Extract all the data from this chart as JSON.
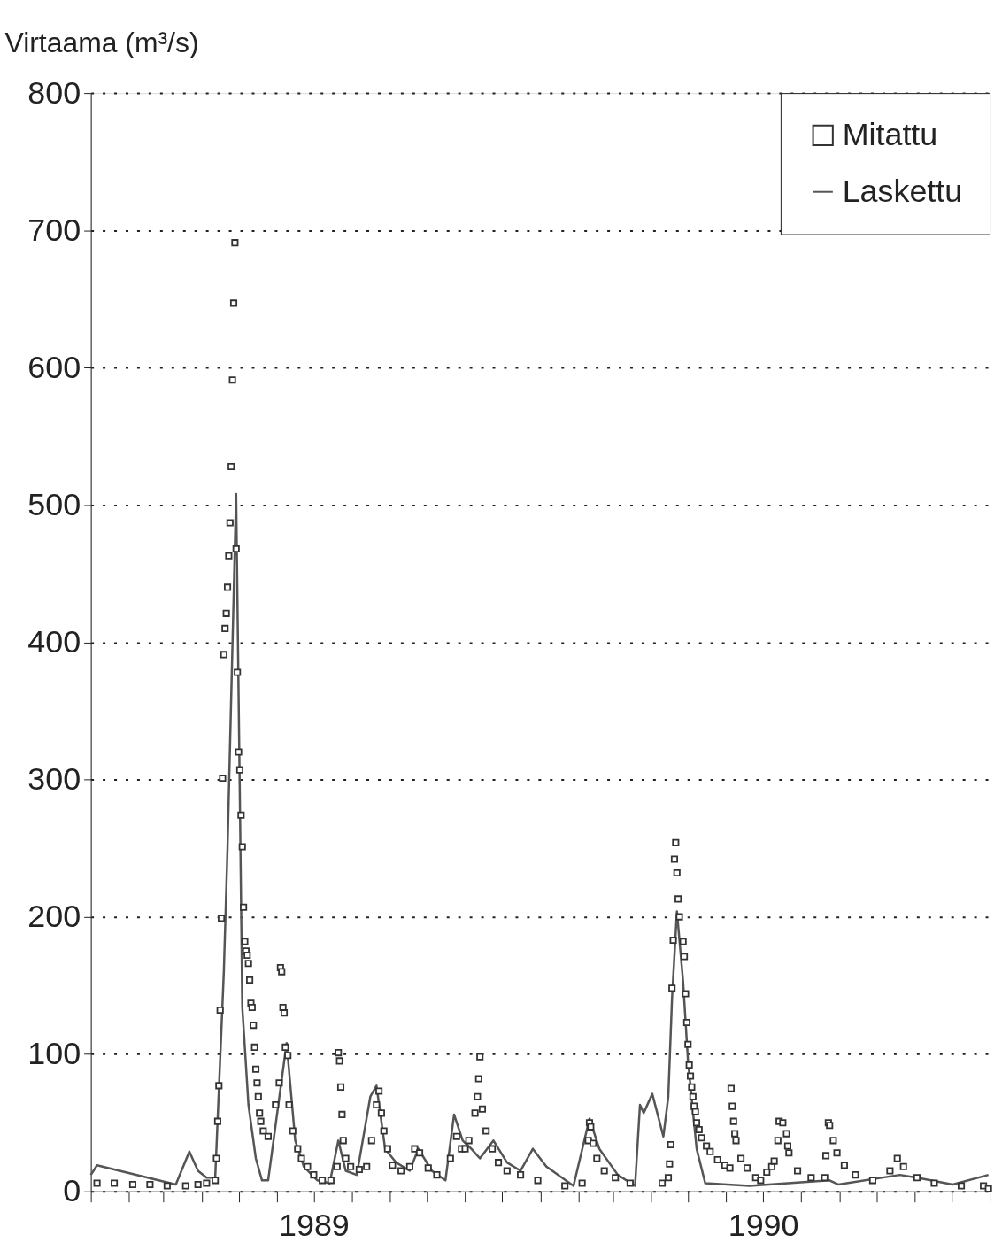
{
  "chart_data": {
    "type": "line",
    "ylabel": "Virtaama (m³/s)",
    "xlim": [
      "1989-01-01",
      "1991-01-01"
    ],
    "xticks": [
      {
        "value": "1989-01-01",
        "label": null
      },
      {
        "value": "1989-02-01",
        "label": null
      },
      {
        "value": "1989-03-01",
        "label": null
      },
      {
        "value": "1989-04-01",
        "label": null
      },
      {
        "value": "1989-05-01",
        "label": null
      },
      {
        "value": "1989-06-01",
        "label": null
      },
      {
        "value": "1989-07-01",
        "label": "1989"
      },
      {
        "value": "1989-08-01",
        "label": null
      },
      {
        "value": "1989-09-01",
        "label": null
      },
      {
        "value": "1989-10-01",
        "label": null
      },
      {
        "value": "1989-11-01",
        "label": null
      },
      {
        "value": "1989-12-01",
        "label": null
      },
      {
        "value": "1990-01-01",
        "label": null
      },
      {
        "value": "1990-02-01",
        "label": null
      },
      {
        "value": "1990-03-01",
        "label": null
      },
      {
        "value": "1990-04-01",
        "label": null
      },
      {
        "value": "1990-05-01",
        "label": null
      },
      {
        "value": "1990-06-01",
        "label": null
      },
      {
        "value": "1990-07-01",
        "label": "1990"
      },
      {
        "value": "1990-08-01",
        "label": null
      },
      {
        "value": "1990-09-01",
        "label": null
      },
      {
        "value": "1990-10-01",
        "label": null
      },
      {
        "value": "1990-11-01",
        "label": null
      },
      {
        "value": "1990-12-01",
        "label": null
      },
      {
        "value": "1991-01-01",
        "label": null
      }
    ],
    "ylim": [
      0,
      800
    ],
    "yticks": [
      0,
      100,
      200,
      300,
      400,
      500,
      600,
      700,
      800
    ],
    "grid": "y",
    "legend": "top right",
    "series": [
      {
        "name": "Mitattu",
        "type": "scatter",
        "marker": "square",
        "color": "#333333",
        "x": [
          "1989-01-06",
          "1989-01-20",
          "1989-02-04",
          "1989-02-18",
          "1989-03-04",
          "1989-03-19",
          "1989-03-29",
          "1989-04-05",
          "1989-04-12",
          "1989-04-13",
          "1989-04-14",
          "1989-04-15",
          "1989-04-16",
          "1989-04-17",
          "1989-04-18",
          "1989-04-19",
          "1989-04-20",
          "1989-04-21",
          "1989-04-22",
          "1989-04-23",
          "1989-04-24",
          "1989-04-25",
          "1989-04-26",
          "1989-04-27",
          "1989-04-28",
          "1989-04-29",
          "1989-04-30",
          "1989-05-01",
          "1989-05-02",
          "1989-05-03",
          "1989-05-04",
          "1989-05-05",
          "1989-05-06",
          "1989-05-07",
          "1989-05-08",
          "1989-05-09",
          "1989-05-10",
          "1989-05-11",
          "1989-05-12",
          "1989-05-13",
          "1989-05-14",
          "1989-05-15",
          "1989-05-16",
          "1989-05-17",
          "1989-05-18",
          "1989-05-19",
          "1989-05-21",
          "1989-05-25",
          "1989-05-31",
          "1989-06-03",
          "1989-06-04",
          "1989-06-05",
          "1989-06-06",
          "1989-06-07",
          "1989-06-08",
          "1989-06-10",
          "1989-06-11",
          "1989-06-14",
          "1989-06-18",
          "1989-06-21",
          "1989-06-26",
          "1989-07-01",
          "1989-07-08",
          "1989-07-15",
          "1989-07-20",
          "1989-07-21",
          "1989-07-22",
          "1989-07-23",
          "1989-07-24",
          "1989-07-25",
          "1989-07-27",
          "1989-07-31",
          "1989-08-07",
          "1989-08-13",
          "1989-08-17",
          "1989-08-21",
          "1989-08-23",
          "1989-08-25",
          "1989-08-27",
          "1989-08-30",
          "1989-09-03",
          "1989-09-10",
          "1989-09-17",
          "1989-09-21",
          "1989-09-25",
          "1989-10-02",
          "1989-10-09",
          "1989-10-20",
          "1989-10-25",
          "1989-10-29",
          "1989-11-01",
          "1989-11-04",
          "1989-11-09",
          "1989-11-11",
          "1989-11-12",
          "1989-11-13",
          "1989-11-15",
          "1989-11-18",
          "1989-11-23",
          "1989-11-28",
          "1989-12-05",
          "1989-12-16",
          "1989-12-30",
          "1990-01-21",
          "1990-02-04",
          "1990-02-09",
          "1990-02-10",
          "1990-02-11",
          "1990-02-13",
          "1990-02-16",
          "1990-02-22",
          "1990-03-03",
          "1990-03-15",
          "1990-04-10",
          "1990-04-15",
          "1990-04-16",
          "1990-04-17",
          "1990-04-18",
          "1990-04-19",
          "1990-04-20",
          "1990-04-21",
          "1990-04-22",
          "1990-04-23",
          "1990-04-24",
          "1990-04-27",
          "1990-04-28",
          "1990-04-29",
          "1990-04-30",
          "1990-05-01",
          "1990-05-02",
          "1990-05-03",
          "1990-05-04",
          "1990-05-05",
          "1990-05-06",
          "1990-05-07",
          "1990-05-08",
          "1990-05-10",
          "1990-05-12",
          "1990-05-16",
          "1990-05-19",
          "1990-05-25",
          "1990-05-31",
          "1990-06-04",
          "1990-06-05",
          "1990-06-06",
          "1990-06-07",
          "1990-06-08",
          "1990-06-09",
          "1990-06-13",
          "1990-06-18",
          "1990-06-25",
          "1990-06-29",
          "1990-07-04",
          "1990-07-08",
          "1990-07-10",
          "1990-07-13",
          "1990-07-14",
          "1990-07-17",
          "1990-07-20",
          "1990-07-21",
          "1990-07-22",
          "1990-07-29",
          "1990-08-09",
          "1990-08-20",
          "1990-08-21",
          "1990-08-23",
          "1990-08-24",
          "1990-08-27",
          "1990-08-30",
          "1990-09-05",
          "1990-09-14",
          "1990-09-28",
          "1990-10-12",
          "1990-10-18",
          "1990-10-23",
          "1990-11-03",
          "1990-11-17",
          "1990-12-09",
          "1990-12-27",
          "1990-12-31"
        ],
        "values": [
          6,
          6,
          5,
          5,
          4,
          4,
          5,
          6,
          8,
          24,
          51,
          77,
          132,
          199,
          301,
          391,
          410,
          421,
          440,
          463,
          487,
          528,
          591,
          647,
          691,
          468,
          378,
          320,
          307,
          274,
          251,
          207,
          182,
          175,
          172,
          166,
          154,
          137,
          134,
          121,
          105,
          89,
          79,
          69,
          57,
          51,
          44,
          40,
          63,
          79,
          163,
          160,
          134,
          130,
          105,
          99,
          63,
          44,
          31,
          24,
          18,
          12,
          8,
          8,
          18,
          101,
          95,
          76,
          56,
          37,
          24,
          18,
          16,
          18,
          37,
          63,
          73,
          57,
          44,
          31,
          19,
          15,
          18,
          31,
          28,
          17,
          12,
          24,
          40,
          31,
          31,
          37,
          57,
          69,
          82,
          98,
          60,
          44,
          31,
          21,
          15,
          12,
          8,
          4,
          6,
          37,
          50,
          47,
          35,
          24,
          15,
          10,
          6,
          6,
          10,
          20,
          34,
          148,
          183,
          242,
          254,
          232,
          213,
          200,
          182,
          171,
          144,
          123,
          107,
          92,
          84,
          76,
          69,
          62,
          58,
          50,
          45,
          39,
          33,
          29,
          23,
          19,
          17,
          75,
          62,
          51,
          42,
          37,
          24,
          17,
          10,
          8,
          14,
          18,
          22,
          37,
          51,
          50,
          42,
          33,
          28,
          15,
          10,
          10,
          26,
          50,
          48,
          37,
          28,
          19,
          12,
          8,
          15,
          24,
          18,
          10,
          6,
          4,
          4,
          2
        ]
      },
      {
        "name": "Laskettu",
        "color": "#555555",
        "x": [
          "1989-01-01",
          "1989-01-06",
          "1989-03-11",
          "1989-03-22",
          "1989-03-29",
          "1989-04-05",
          "1989-04-12",
          "1989-04-19",
          "1989-04-22",
          "1989-04-29",
          "1989-05-02",
          "1989-05-04",
          "1989-05-09",
          "1989-05-15",
          "1989-05-20",
          "1989-05-25",
          "1989-06-09",
          "1989-06-16",
          "1989-06-23",
          "1989-07-04",
          "1989-07-14",
          "1989-07-21",
          "1989-07-27",
          "1989-08-05",
          "1989-08-16",
          "1989-08-21",
          "1989-08-28",
          "1989-09-06",
          "1989-09-17",
          "1989-09-24",
          "1989-10-05",
          "1989-10-16",
          "1989-10-23",
          "1989-10-30",
          "1989-11-06",
          "1989-11-13",
          "1989-11-24",
          "1989-12-05",
          "1989-12-16",
          "1989-12-26",
          "1990-01-06",
          "1990-01-28",
          "1990-02-10",
          "1990-02-18",
          "1990-03-05",
          "1990-03-19",
          "1990-03-23",
          "1990-03-26",
          "1990-04-02",
          "1990-04-11",
          "1990-04-15",
          "1990-04-18",
          "1990-04-22",
          "1990-04-27",
          "1990-05-01",
          "1990-05-08",
          "1990-05-15",
          "1990-06-20",
          "1990-08-24",
          "1990-08-31",
          "1990-10-20",
          "1990-11-03",
          "1990-12-02",
          "1990-12-31"
        ],
        "values": [
          12,
          19,
          5,
          29,
          15,
          10,
          10,
          160,
          250,
          508,
          288,
          134,
          63,
          24,
          8,
          8,
          108,
          37,
          18,
          8,
          6,
          37,
          15,
          12,
          69,
          77,
          31,
          21,
          15,
          31,
          15,
          8,
          56,
          37,
          31,
          24,
          37,
          21,
          15,
          31,
          18,
          4,
          53,
          31,
          12,
          4,
          63,
          57,
          71,
          40,
          69,
          140,
          204,
          153,
          95,
          31,
          6,
          4,
          8,
          5,
          12,
          10,
          5,
          12
        ]
      }
    ]
  }
}
